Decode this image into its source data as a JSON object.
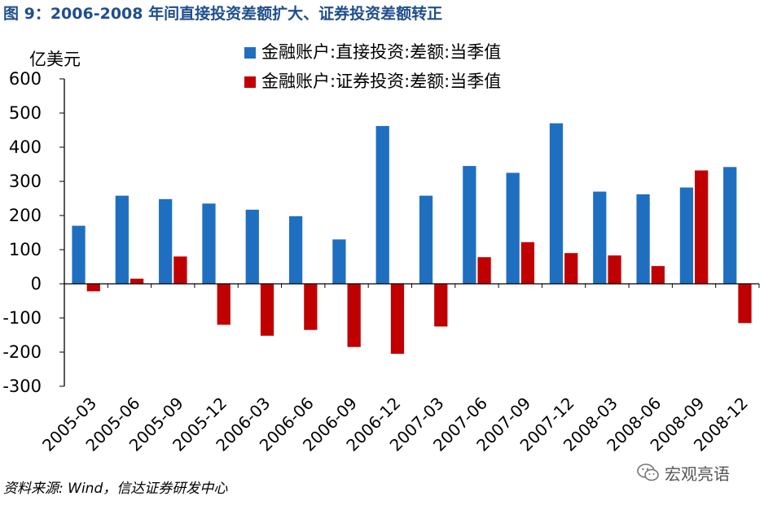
{
  "figure_title": "图 9：2006-2008 年间直接投资差额扩大、证券投资差额转正",
  "source": "资料来源: Wind，信达证券研发中心",
  "watermark": "宏观亮语",
  "chart_data": {
    "type": "bar",
    "ylabel": "亿美元",
    "ylim": [
      -300,
      600
    ],
    "yticks": [
      -300,
      -200,
      -100,
      0,
      100,
      200,
      300,
      400,
      500,
      600
    ],
    "grid": false,
    "legend_position": "top-center",
    "categories": [
      "2005-03",
      "2005-06",
      "2005-09",
      "2005-12",
      "2006-03",
      "2006-06",
      "2006-09",
      "2006-12",
      "2007-03",
      "2007-06",
      "2007-09",
      "2007-12",
      "2008-03",
      "2008-06",
      "2008-09",
      "2008-12"
    ],
    "series": [
      {
        "name": "金融账户:直接投资:差额:当季值",
        "color": "#1f6fc0",
        "values": [
          170,
          258,
          248,
          235,
          217,
          198,
          130,
          462,
          258,
          345,
          325,
          470,
          270,
          262,
          282,
          342
        ]
      },
      {
        "name": "金融账户:证券投资:差额:当季值",
        "color": "#c00000",
        "values": [
          -22,
          15,
          80,
          -120,
          -152,
          -135,
          -185,
          -205,
          -125,
          78,
          122,
          90,
          83,
          52,
          332,
          -115
        ]
      }
    ]
  }
}
